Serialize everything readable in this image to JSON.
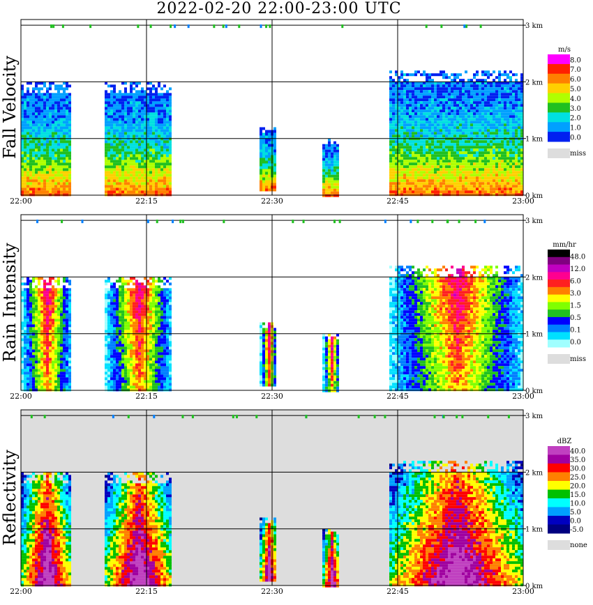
{
  "title": "2022-02-20  22:00-23:00 UTC",
  "chart_data": [
    {
      "type": "heatmap",
      "panel": "fall-velocity",
      "ylabel": "Fall Velocity",
      "x_ticks": [
        "22:00",
        "22:15",
        "22:30",
        "22:45",
        "23:00"
      ],
      "y_ticks": [
        "0 km",
        "1 km",
        "2 km",
        "3 km"
      ],
      "xlim_minutes": [
        0,
        60
      ],
      "ylim_km": [
        0,
        3.1
      ],
      "grid": true,
      "legend_position": "right",
      "colorbar": {
        "unit": "m/s",
        "labels": [
          "8.0",
          "7.0",
          "6.0",
          "5.0",
          "4.0",
          "3.0",
          "2.0",
          "1.0",
          "0.0"
        ],
        "colors": [
          "#ff00ff",
          "#ff2000",
          "#ff8000",
          "#ffd000",
          "#b0ff00",
          "#20c020",
          "#00e0e0",
          "#00a0ff",
          "#0020f0"
        ],
        "missing_label": "miss",
        "missing_color": "#dddddd"
      },
      "background": "#ffffff",
      "echo_regions": [
        {
          "start_min": 0,
          "end_min": 6,
          "top_km": 2.0,
          "bottom_km": 0,
          "max_top_km": 2.0
        },
        {
          "start_min": 10,
          "end_min": 18,
          "top_km": 2.0,
          "bottom_km": 0
        },
        {
          "start_min": 28.5,
          "end_min": 30.5,
          "top_km": 1.2,
          "bottom_km": 0.1
        },
        {
          "start_min": 36,
          "end_min": 38,
          "top_km": 1.0,
          "bottom_km": 0
        },
        {
          "start_min": 44,
          "end_min": 60,
          "top_km": 2.2,
          "bottom_km": 0
        }
      ]
    },
    {
      "type": "heatmap",
      "panel": "rain-intensity",
      "ylabel": "Rain Intensity",
      "x_ticks": [
        "22:00",
        "22:15",
        "22:30",
        "22:45",
        "23:00"
      ],
      "y_ticks": [
        "0 km",
        "1 km",
        "2 km",
        "3 km"
      ],
      "xlim_minutes": [
        0,
        60
      ],
      "ylim_km": [
        0,
        3.1
      ],
      "grid": true,
      "legend_position": "right",
      "colorbar": {
        "unit": "mm/hr",
        "labels": [
          "48.0",
          "12.0",
          "6.0",
          "3.0",
          "1.5",
          "0.5",
          "0.1",
          "0.0"
        ],
        "colors": [
          "#000000",
          "#800080",
          "#c000c0",
          "#ff0090",
          "#ff2020",
          "#ff8000",
          "#ffff00",
          "#80ff00",
          "#20c020",
          "#0000ff",
          "#0080ff",
          "#00e0ff",
          "#a0ffff"
        ],
        "missing_label": "miss",
        "missing_color": "#dddddd"
      },
      "background": "#ffffff"
    },
    {
      "type": "heatmap",
      "panel": "reflectivity",
      "ylabel": "Reflectivity",
      "x_ticks": [
        "22:00",
        "22:15",
        "22:30",
        "22:45",
        "23:00"
      ],
      "y_ticks": [
        "0 km",
        "1 km",
        "2 km",
        "3 km"
      ],
      "xlim_minutes": [
        0,
        60
      ],
      "ylim_km": [
        0,
        3.1
      ],
      "grid": true,
      "legend_position": "right",
      "colorbar": {
        "unit": "dBZ",
        "labels": [
          "40.0",
          "35.0",
          "30.0",
          "25.0",
          "20.0",
          "15.0",
          "10.0",
          "5.0",
          "0.0",
          "-5.0"
        ],
        "colors": [
          "#c040c0",
          "#a000a0",
          "#ff0000",
          "#ff8000",
          "#ffff00",
          "#00c000",
          "#00ffff",
          "#00a0ff",
          "#0000c0",
          "#000080"
        ],
        "missing_label": "none",
        "missing_color": "#dddddd"
      },
      "background": "#dddddd"
    }
  ]
}
